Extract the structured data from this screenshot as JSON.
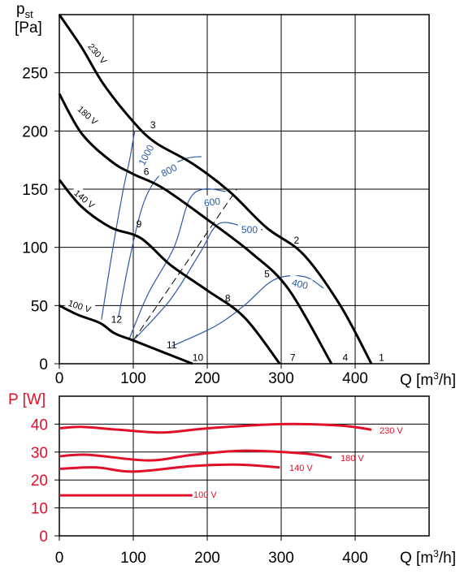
{
  "chart_data": [
    {
      "type": "line",
      "ylabel": "p",
      "ylabel_sub": "st",
      "ylabel_unit": "[Pa]",
      "xlabel": "Q [m",
      "xlabel_sup": "3",
      "xlabel_end": "/h]",
      "xlim": [
        0,
        500
      ],
      "ylim": [
        0,
        300
      ],
      "x_ticks": [
        "0",
        "100",
        "200",
        "300",
        "400"
      ],
      "y_ticks": [
        "0",
        "50",
        "100",
        "150",
        "200",
        "250"
      ],
      "grid": true,
      "colors": {
        "curve": "#000000",
        "rpm": "#2a5aa8",
        "grid": "#000000"
      },
      "series": [
        {
          "name": "230 V",
          "x": [
            0,
            30,
            60,
            100,
            130,
            180,
            230,
            280,
            330,
            380,
            422
          ],
          "y": [
            300,
            272,
            240,
            208,
            190,
            172,
            148,
            117,
            94,
            50,
            0
          ]
        },
        {
          "name": "180 V",
          "x": [
            0,
            30,
            70,
            100,
            140,
            200,
            260,
            310,
            368
          ],
          "y": [
            232,
            198,
            174,
            163,
            151,
            124,
            95,
            64,
            0
          ]
        },
        {
          "name": "140 V",
          "x": [
            0,
            30,
            70,
            110,
            150,
            200,
            250,
            298
          ],
          "y": [
            158,
            135,
            117,
            108,
            85,
            63,
            40,
            0
          ]
        },
        {
          "name": "100 V",
          "x": [
            0,
            25,
            55,
            75,
            100,
            140,
            180
          ],
          "y": [
            50,
            42,
            35,
            26,
            20,
            10,
            0
          ]
        }
      ],
      "rpm_lines": [
        {
          "label": "1000",
          "x": [
            57,
            70,
            85,
            95,
            100,
            102
          ],
          "y": [
            38,
            90,
            145,
            175,
            193,
            200
          ]
        },
        {
          "label": "800",
          "x": [
            80,
            95,
            115,
            140,
            170,
            192
          ],
          "y": [
            40,
            90,
            140,
            165,
            176,
            178
          ]
        },
        {
          "label": "600",
          "x": [
            95,
            120,
            155,
            175,
            195,
            225
          ],
          "y": [
            22,
            60,
            100,
            140,
            150,
            148
          ]
        },
        {
          "label": "500",
          "x": [
            100,
            150,
            190,
            215,
            250,
            275
          ],
          "y": [
            20,
            55,
            95,
            120,
            118,
            115
          ]
        },
        {
          "label": "400",
          "x": [
            152,
            210,
            250,
            290,
            330,
            357
          ],
          "y": [
            15,
            32,
            50,
            72,
            75,
            65
          ]
        }
      ],
      "system_line": {
        "x": [
          100,
          240
        ],
        "y": [
          20,
          150
        ]
      },
      "point_labels": [
        {
          "text": "1",
          "x": 432,
          "y": 3
        },
        {
          "text": "2",
          "x": 317,
          "y": 104
        },
        {
          "text": "3",
          "x": 123,
          "y": 203
        },
        {
          "text": "4",
          "x": 383,
          "y": 3
        },
        {
          "text": "5",
          "x": 277,
          "y": 75
        },
        {
          "text": "6",
          "x": 114,
          "y": 163
        },
        {
          "text": "7",
          "x": 312,
          "y": 3
        },
        {
          "text": "8",
          "x": 224,
          "y": 54
        },
        {
          "text": "9",
          "x": 104,
          "y": 118
        },
        {
          "text": "10",
          "x": 180,
          "y": 3
        },
        {
          "text": "11",
          "x": 145,
          "y": 14
        },
        {
          "text": "12",
          "x": 70,
          "y": 36
        }
      ]
    },
    {
      "type": "line",
      "ylabel": "P [W]",
      "xlabel": "Q [m",
      "xlabel_sup": "3",
      "xlabel_end": "/h]",
      "xlim": [
        0,
        500
      ],
      "ylim": [
        0,
        50
      ],
      "x_ticks": [
        "0",
        "100",
        "200",
        "300",
        "400"
      ],
      "y_ticks": [
        "0",
        "10",
        "20",
        "30",
        "40"
      ],
      "grid": true,
      "colors": {
        "curve": "#e0102a",
        "axis_label": "#e0102a"
      },
      "series": [
        {
          "name": "230 V",
          "x": [
            0,
            30,
            80,
            140,
            200,
            300,
            380,
            422
          ],
          "y": [
            38.5,
            39,
            38,
            37,
            38.5,
            40,
            39.5,
            38
          ]
        },
        {
          "name": "180 V",
          "x": [
            0,
            40,
            120,
            180,
            250,
            330,
            368
          ],
          "y": [
            28.5,
            29,
            27,
            29,
            30.5,
            29.5,
            28
          ]
        },
        {
          "name": "140 V",
          "x": [
            0,
            50,
            100,
            180,
            240,
            298
          ],
          "y": [
            24,
            24.5,
            23,
            25,
            25.5,
            24.5
          ]
        },
        {
          "name": "100 V",
          "x": [
            0,
            100,
            180
          ],
          "y": [
            14.5,
            14.5,
            14.5
          ]
        }
      ]
    }
  ]
}
